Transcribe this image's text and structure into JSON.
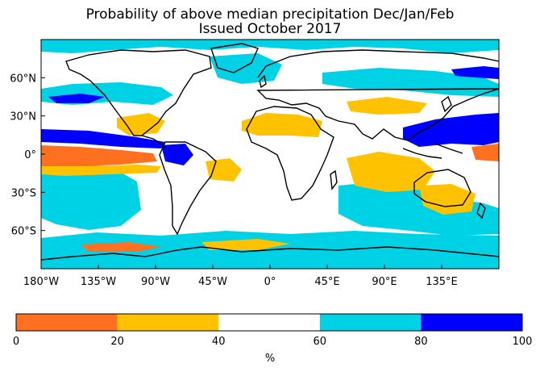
{
  "title_line1": "Probability of above median precipitation Dec/Jan/Feb",
  "title_line2": "Issued October 2017",
  "map": {
    "lon_range": [
      -180,
      180
    ],
    "lat_range": [
      -90,
      90
    ],
    "x_ticks": [
      {
        "lon": -180,
        "label": "180°W"
      },
      {
        "lon": -135,
        "label": "135°W"
      },
      {
        "lon": -90,
        "label": "90°W"
      },
      {
        "lon": -45,
        "label": "45°W"
      },
      {
        "lon": 0,
        "label": "0°"
      },
      {
        "lon": 45,
        "label": "45°E"
      },
      {
        "lon": 90,
        "label": "90°E"
      },
      {
        "lon": 135,
        "label": "135°E"
      }
    ],
    "y_ticks": [
      {
        "lat": 60,
        "label": "60°N"
      },
      {
        "lat": 30,
        "label": "30°N"
      },
      {
        "lat": 0,
        "label": "0°"
      },
      {
        "lat": -30,
        "label": "30°S"
      },
      {
        "lat": -60,
        "label": "60°S"
      }
    ]
  },
  "colorbar": {
    "ticks": [
      "0",
      "20",
      "40",
      "60",
      "80",
      "100"
    ],
    "unit_label": "%",
    "bins": [
      {
        "from": 0,
        "to": 20,
        "color": "#ff7020"
      },
      {
        "from": 20,
        "to": 40,
        "color": "#ffc200"
      },
      {
        "from": 40,
        "to": 60,
        "color": "#ffffff"
      },
      {
        "from": 60,
        "to": 80,
        "color": "#00d2e6"
      },
      {
        "from": 80,
        "to": 100,
        "color": "#0000ff"
      }
    ]
  }
}
